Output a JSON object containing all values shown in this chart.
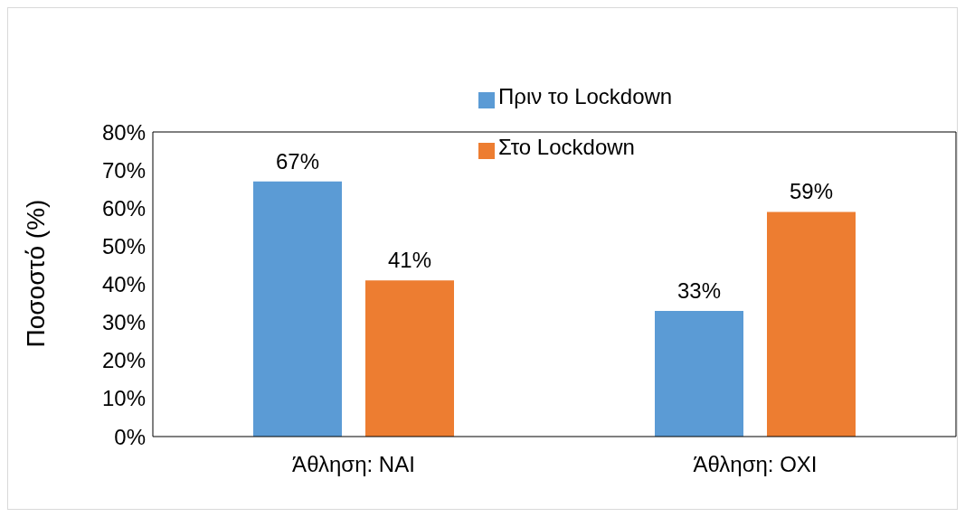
{
  "chart_data": {
    "type": "bar",
    "ylabel": "Ποσοστό (%)",
    "categories": [
      "Άθληση: ΝΑΙ",
      "Άθληση: ΟΧΙ"
    ],
    "series": [
      {
        "name": "Πριν το Lockdown",
        "color": "#5b9bd5",
        "values": [
          67,
          33
        ],
        "value_labels": [
          "67%",
          "33%"
        ]
      },
      {
        "name": "Στο Lockdown",
        "color": "#ed7d31",
        "values": [
          41,
          59
        ],
        "value_labels": [
          "41%",
          "59%"
        ]
      }
    ],
    "ylim": [
      0,
      80
    ],
    "yticks": [
      {
        "value": 0,
        "label": "0%"
      },
      {
        "value": 10,
        "label": "10%"
      },
      {
        "value": 20,
        "label": "20%"
      },
      {
        "value": 30,
        "label": "30%"
      },
      {
        "value": 40,
        "label": "40%"
      },
      {
        "value": 50,
        "label": "50%"
      },
      {
        "value": 60,
        "label": "60%"
      },
      {
        "value": 70,
        "label": "70%"
      },
      {
        "value": 80,
        "label": "80%"
      }
    ],
    "grid": false,
    "legend": "top"
  }
}
